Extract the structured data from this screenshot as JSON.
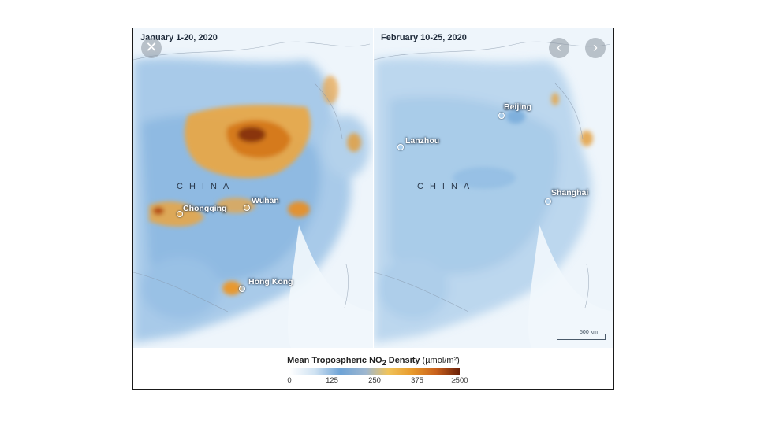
{
  "panels": {
    "left": {
      "date": "January 1-20, 2020",
      "country": "CHINA",
      "cities": [
        "Chongqing",
        "Wuhan",
        "Hong Kong"
      ]
    },
    "right": {
      "date": "February 10-25, 2020",
      "country": "CHINA",
      "cities": [
        "Beijing",
        "Lanzhou",
        "Shanghai"
      ],
      "scale": "500 km"
    }
  },
  "controls": {
    "close_icon": "close-icon",
    "prev_icon": "chevron-left-icon",
    "next_icon": "chevron-right-icon",
    "close": "✕",
    "prev": "‹",
    "next": "›"
  },
  "legend": {
    "title_prefix": "Mean Tropospheric NO",
    "title_sub": "2",
    "title_suffix": " Density",
    "unit": "(µmol/m²)",
    "ticks": [
      "0",
      "125",
      "250",
      "375",
      "≥500"
    ]
  },
  "colors": {
    "low": "#cfe2f2",
    "mid_blue": "#6ea3d6",
    "orange": "#e89a2c",
    "dark": "#6b2008"
  }
}
